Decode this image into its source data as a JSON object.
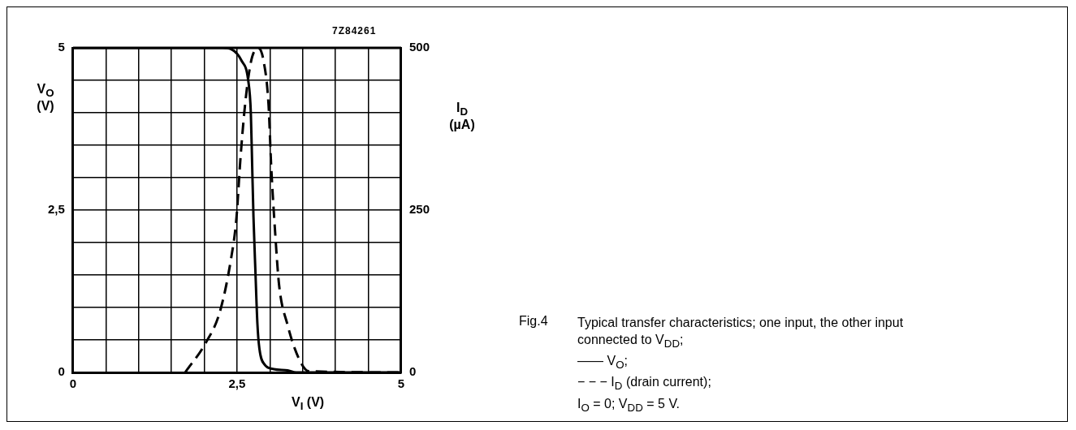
{
  "chart_data": {
    "type": "line",
    "xlabel": "V$_{I}$ (V)",
    "ylabel": "V$_{O}$ (V)",
    "y2label": "I$_{D}$ (µA)",
    "xlim": [
      0,
      5
    ],
    "xticks": [
      0,
      {
        "value": 0.5,
        "label": null
      },
      {
        "value": 1,
        "label": null
      },
      {
        "value": 1.5,
        "label": null
      },
      {
        "value": 2,
        "label": null
      },
      {
        "value": 2.5,
        "label": "2,5"
      },
      {
        "value": 3,
        "label": null
      },
      {
        "value": 3.5,
        "label": null
      },
      {
        "value": 4,
        "label": null
      },
      {
        "value": 4.5,
        "label": null
      },
      5
    ],
    "ylim": [
      0,
      5
    ],
    "yticks": [
      0,
      {
        "value": 0.5,
        "label": null
      },
      {
        "value": 1,
        "label": null
      },
      {
        "value": 1.5,
        "label": null
      },
      {
        "value": 2,
        "label": null
      },
      {
        "value": 2.5,
        "label": "2,5"
      },
      {
        "value": 3,
        "label": null
      },
      {
        "value": 3.5,
        "label": null
      },
      {
        "value": 4,
        "label": null
      },
      {
        "value": 4.5,
        "label": null
      },
      5
    ],
    "y2lim": [
      0,
      500
    ],
    "y2ticks": [
      0,
      250,
      500
    ],
    "grid": true,
    "legend": false,
    "marker": "none",
    "series": [
      {
        "color": "#000000",
        "line_style": "solid",
        "x": [
          0,
          2.28,
          2.41,
          2.57,
          2.67,
          2.71,
          2.73,
          2.75,
          2.78,
          2.81,
          2.84,
          2.92,
          3.06,
          3.27,
          3.4,
          5
        ],
        "values": [
          5,
          5,
          4.98,
          4.8,
          4.5,
          4,
          3.2,
          2.4,
          1.55,
          0.75,
          0.37,
          0.12,
          0.05,
          0.03,
          0,
          0
        ]
      },
      {
        "color": "#000000",
        "line_style": "dashed",
        "axis": "y2",
        "x": [
          1.71,
          2.02,
          2.24,
          2.41,
          2.49,
          2.55,
          2.61,
          2.67,
          2.73,
          2.82,
          2.9,
          2.98,
          3.02,
          3.08,
          3.14,
          3.27,
          3.43,
          3.59,
          5
        ],
        "values": [
          0,
          45,
          94,
          176,
          237,
          327,
          400,
          453,
          486,
          500,
          482,
          412,
          318,
          216,
          135,
          73,
          24,
          2,
          0
        ]
      }
    ],
    "annotations": [
      "7Z84261",
      "Fig.4",
      "Typical transfer characteristics; one input, the other input connected to V$_{DD}$;",
      "—— V$_{O}$;",
      "− − − I$_{D}$ (drain current);",
      "I$_{O}$ = 0; V$_{DD}$ = 5 V."
    ]
  }
}
